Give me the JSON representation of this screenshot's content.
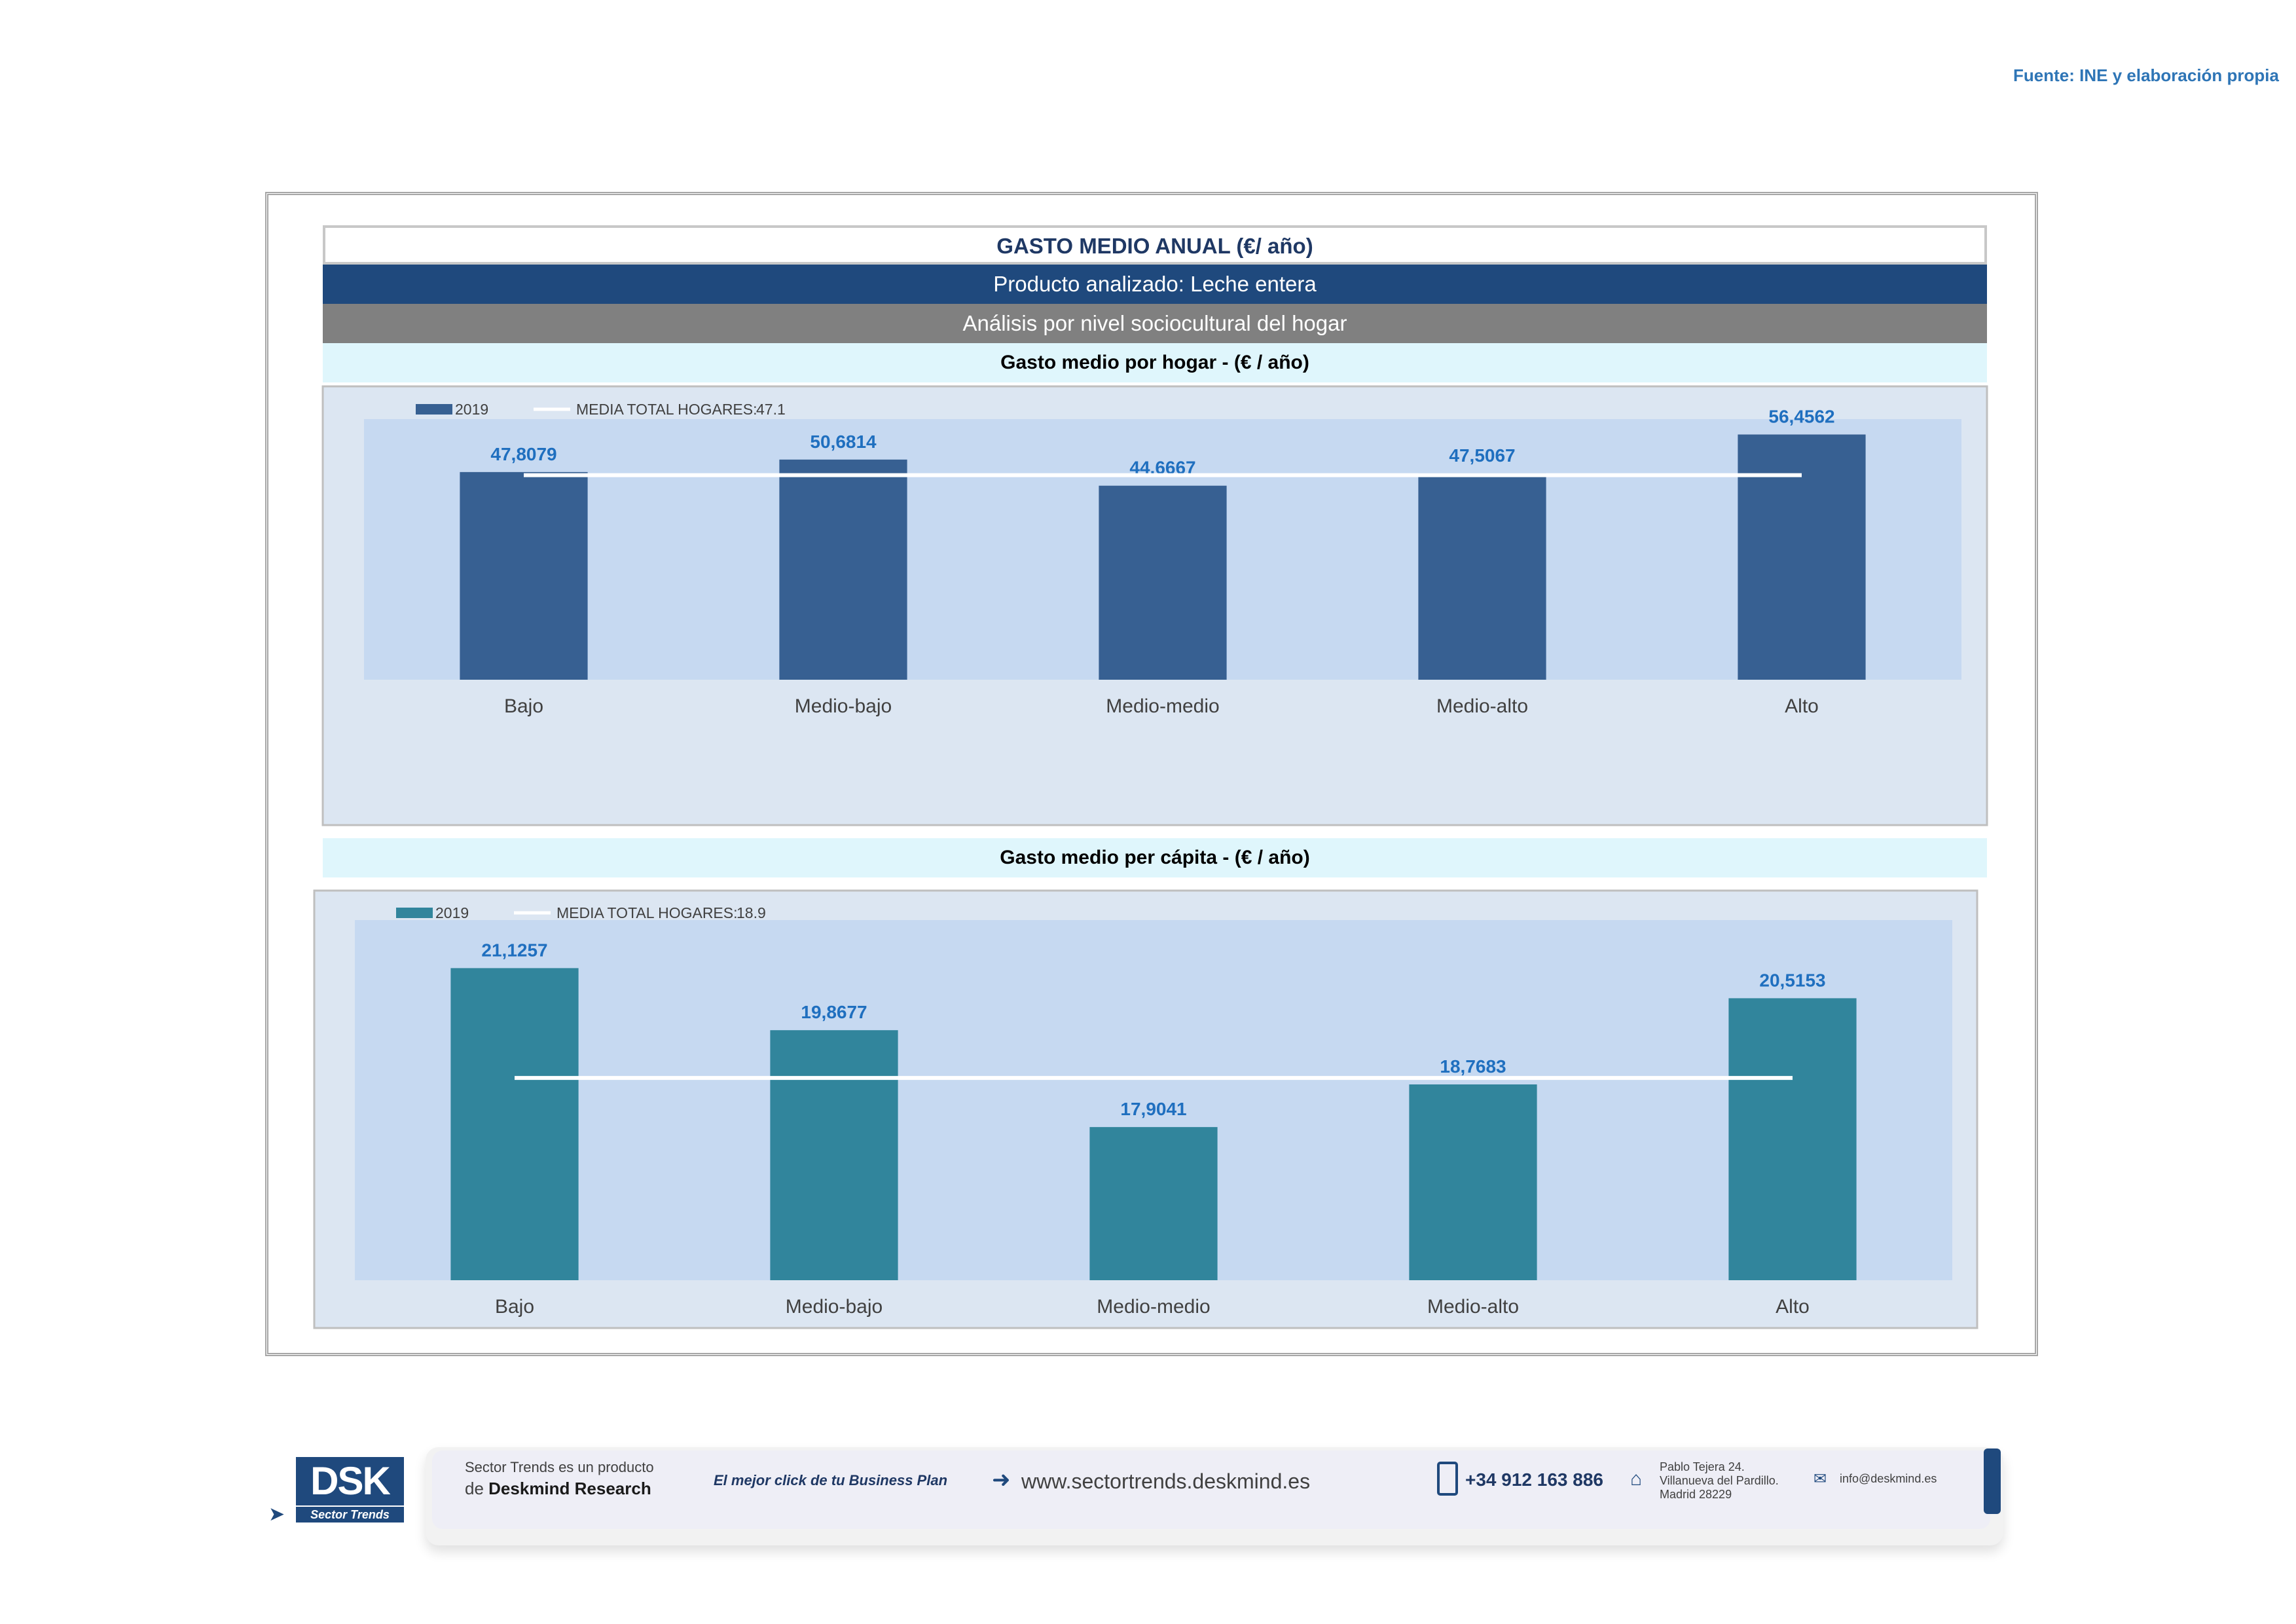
{
  "source": "Fuente: INE y elaboración propia",
  "header": {
    "title": "GASTO MEDIO ANUAL (€/ año)",
    "product": "Producto analizado: Leche entera",
    "analysis": "Análisis por nivel sociocultural del hogar"
  },
  "chart_data": [
    {
      "type": "bar",
      "title": "Gasto medio por hogar -  (€ / año)",
      "categories": [
        "Bajo",
        "Medio-bajo",
        "Medio-medio",
        "Medio-alto",
        "Alto"
      ],
      "series": [
        {
          "name": "2019",
          "values": [
            47.8079,
            50.6814,
            44.6667,
            47.5067,
            56.4562
          ],
          "labels": [
            "47,8079",
            "50,6814",
            "44,6667",
            "47,5067",
            "56,4562"
          ]
        }
      ],
      "reference_line": {
        "name": "MEDIA TOTAL  HOGARES:",
        "value_label": "47.1",
        "value": 47.1
      },
      "ylim": [
        0,
        60
      ],
      "bar_color": "#376092",
      "legend_position": "top-left"
    },
    {
      "type": "bar",
      "title": "Gasto medio per cápita -  (€ / año)",
      "categories": [
        "Bajo",
        "Medio-bajo",
        "Medio-medio",
        "Medio-alto",
        "Alto"
      ],
      "series": [
        {
          "name": "2019",
          "values": [
            21.1257,
            19.8677,
            17.9041,
            18.7683,
            20.5153
          ],
          "labels": [
            "21,1257",
            "19,8677",
            "17,9041",
            "18,7683",
            "20,5153"
          ]
        }
      ],
      "reference_line": {
        "name": "MEDIA TOTAL  HOGARES:",
        "value_label": "18.9",
        "value": 18.9
      },
      "ylim": [
        14.8,
        22.1
      ],
      "bar_color": "#31859c",
      "legend_position": "top-left"
    }
  ],
  "footer": {
    "logo_text": "DSK",
    "logo_sub": "Sector Trends",
    "product_line1": "Sector Trends es un producto",
    "product_line2_prefix": "de",
    "product_line2_brand": "Deskmind Research",
    "slogan": "El mejor click de tu Business Plan",
    "website": "www.sectortrends.deskmind.es",
    "phone": "+34 912 163 886",
    "address1": "Pablo Tejera 24.",
    "address2": "Villanueva del Pardillo.",
    "address3": "Madrid 28229",
    "email": "info@deskmind.es",
    "accent": "#1f497d"
  }
}
